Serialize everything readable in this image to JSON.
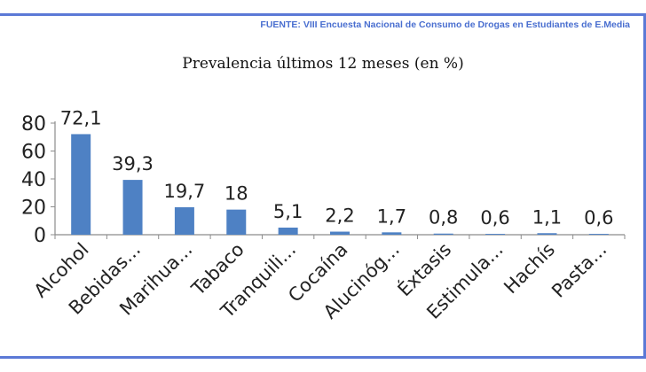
{
  "source": "FUENTE: VIII Encuesta Nacional de Consumo de Drogas en Estudiantes de E.Media",
  "colors": {
    "bar": "#4e81c4",
    "frame": "#5b79d6",
    "source_text": "#4a6fd0",
    "axis": "#8c8c8c"
  },
  "chart_data": {
    "type": "bar",
    "title": "Prevalencia últimos 12 meses (en %)",
    "categories": [
      "Alcohol",
      "Bebidas...",
      "Marihua...",
      "Tabaco",
      "Tranquili...",
      "Cocaína",
      "Alucinóg...",
      "Éxtasis",
      "Estimula...",
      "Hachís",
      "Pasta..."
    ],
    "values": [
      72.1,
      39.3,
      19.7,
      18,
      5.1,
      2.2,
      1.7,
      0.8,
      0.6,
      1.1,
      0.6
    ],
    "value_labels": [
      "72,1",
      "39,3",
      "19,7",
      "18",
      "5,1",
      "2,2",
      "1,7",
      "0,8",
      "0,6",
      "1,1",
      "0,6"
    ],
    "yticks": [
      "0",
      "20",
      "40",
      "60",
      "80"
    ],
    "ylim": [
      0,
      80
    ],
    "xlabel": "",
    "ylabel": "",
    "grid": false,
    "legend": "none"
  }
}
